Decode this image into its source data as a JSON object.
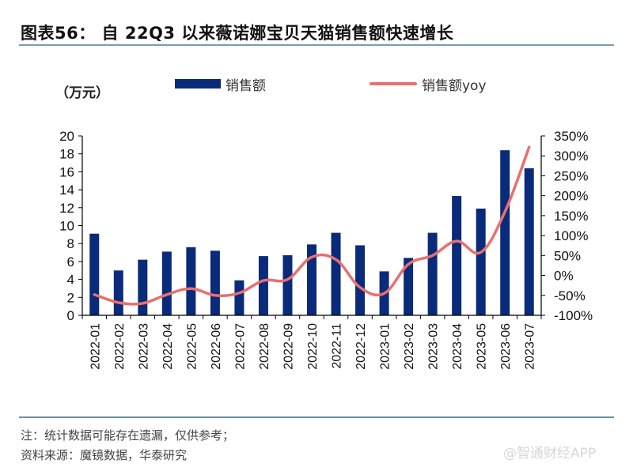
{
  "header": {
    "title": "图表56： 自 22Q3 以来薇诺娜宝贝天猫销售额快速增长",
    "unit": "（万元）"
  },
  "legend": {
    "bar_label": "销售额",
    "line_label": "销售额yoy"
  },
  "footer": {
    "note": "注：统计数据可能存在遗漏，仅供参考；",
    "source": "资料来源：魔镜数据，华泰研究",
    "watermark": "@智通财经APP"
  },
  "colors": {
    "bar": "#0a2a7a",
    "line": "#e8706f",
    "axis": "#000000"
  },
  "chart_data": {
    "type": "bar",
    "title": "自 22Q3 以来薇诺娜宝贝天猫销售额快速增长",
    "xlabel": "",
    "ylabel": "万元",
    "y2label": "",
    "categories": [
      "2022-01",
      "2022-02",
      "2022-03",
      "2022-04",
      "2022-05",
      "2022-06",
      "2022-07",
      "2022-08",
      "2022-09",
      "2022-10",
      "2022-11",
      "2022-12",
      "2023-01",
      "2023-02",
      "2023-03",
      "2023-04",
      "2023-05",
      "2023-06",
      "2023-07"
    ],
    "series": [
      {
        "name": "销售额",
        "type": "bar",
        "axis": "left",
        "values": [
          9.1,
          5.0,
          6.2,
          7.1,
          7.6,
          7.2,
          3.9,
          6.6,
          6.7,
          7.9,
          9.2,
          7.8,
          4.9,
          6.4,
          9.2,
          13.3,
          11.9,
          18.4,
          16.4
        ]
      },
      {
        "name": "销售额yoy",
        "type": "line",
        "axis": "right",
        "unit": "%",
        "values": [
          -48,
          -68,
          -70,
          -48,
          -33,
          -50,
          -44,
          -13,
          -10,
          46,
          40,
          -30,
          -45,
          28,
          50,
          86,
          58,
          160,
          322
        ]
      }
    ],
    "ylim": [
      0,
      20
    ],
    "yticks": [
      "0",
      "2",
      "4",
      "6",
      "8",
      "10",
      "12",
      "14",
      "16",
      "18",
      "20"
    ],
    "y2lim": [
      -100,
      350
    ],
    "y2ticks": [
      "-100%",
      "-50%",
      "0%",
      "50%",
      "100%",
      "150%",
      "200%",
      "250%",
      "300%",
      "350%"
    ],
    "grid": false,
    "legend_position": "top"
  }
}
